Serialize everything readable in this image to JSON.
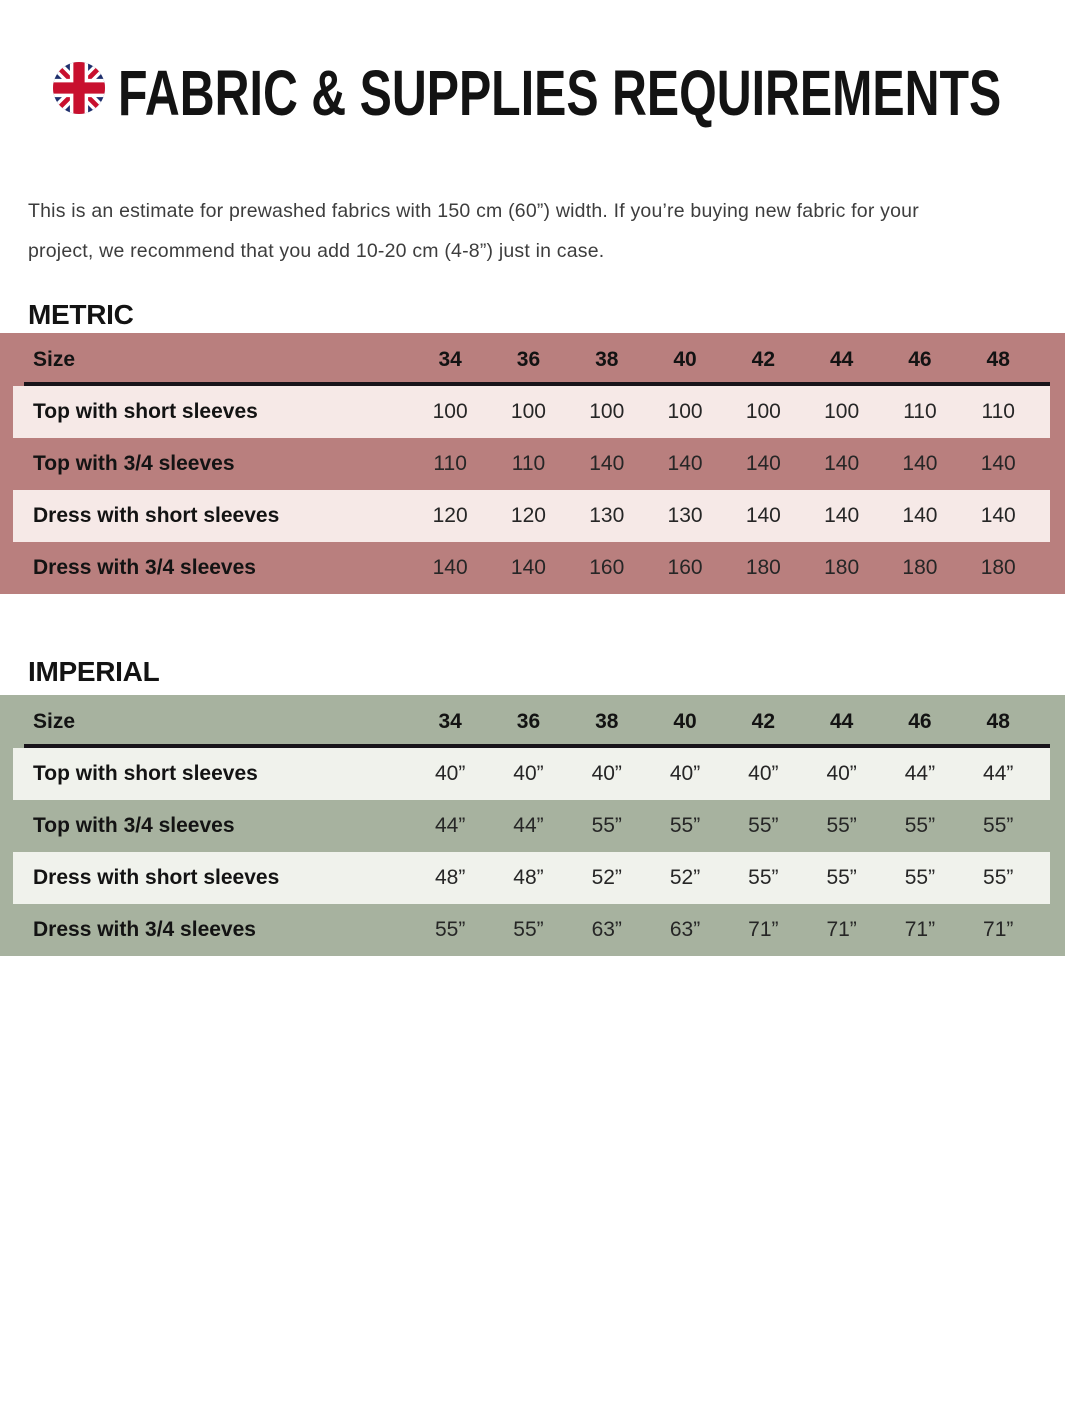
{
  "header": {
    "title": "FABRIC & SUPPLIES REQUIREMENTS",
    "flag_icon": {
      "name": "uk-flag-icon",
      "colors": {
        "blue": "#1f2f6d",
        "red": "#c8102e",
        "white": "#ffffff"
      }
    }
  },
  "intro": {
    "line1": "This is an estimate for prewashed fabrics with 150 cm (60”) width. If you’re buying new fabric for your",
    "line2": "project, we recommend that you add 10-20 cm (4-8”) just in case."
  },
  "theme": {
    "page_bg": "#ffffff",
    "ink": "#131313",
    "intro_ink": "#3d3d3d",
    "cell_ink": "#262626",
    "rule": "#18141a"
  },
  "tables": [
    {
      "id": "metric",
      "heading": "METRIC",
      "colors": {
        "base": "#b97f7e",
        "light": "#f6e9e7"
      },
      "size_label": "Size",
      "sizes": [
        "34",
        "36",
        "38",
        "40",
        "42",
        "44",
        "46",
        "48"
      ],
      "rows": [
        {
          "label": "Top with short sleeves",
          "values": [
            "100",
            "100",
            "100",
            "100",
            "100",
            "100",
            "110",
            "110"
          ]
        },
        {
          "label": "Top with 3/4 sleeves",
          "values": [
            "110",
            "110",
            "140",
            "140",
            "140",
            "140",
            "140",
            "140"
          ]
        },
        {
          "label": "Dress with short sleeves",
          "values": [
            "120",
            "120",
            "130",
            "130",
            "140",
            "140",
            "140",
            "140"
          ]
        },
        {
          "label": "Dress with 3/4 sleeves",
          "values": [
            "140",
            "140",
            "160",
            "160",
            "180",
            "180",
            "180",
            "180"
          ]
        }
      ]
    },
    {
      "id": "imperial",
      "heading": "IMPERIAL",
      "colors": {
        "base": "#a7b29f",
        "light": "#f0f2ec"
      },
      "size_label": "Size",
      "sizes": [
        "34",
        "36",
        "38",
        "40",
        "42",
        "44",
        "46",
        "48"
      ],
      "rows": [
        {
          "label": "Top with short sleeves",
          "values": [
            "40”",
            "40”",
            "40”",
            "40”",
            "40”",
            "40”",
            "44”",
            "44”"
          ]
        },
        {
          "label": "Top with 3/4 sleeves",
          "values": [
            "44”",
            "44”",
            "55”",
            "55”",
            "55”",
            "55”",
            "55”",
            "55”"
          ]
        },
        {
          "label": "Dress with short sleeves",
          "values": [
            "48”",
            "48”",
            "52”",
            "52”",
            "55”",
            "55”",
            "55”",
            "55”"
          ]
        },
        {
          "label": "Dress with 3/4 sleeves",
          "values": [
            "55”",
            "55”",
            "63”",
            "63”",
            "71”",
            "71”",
            "71”",
            "71”"
          ]
        }
      ]
    }
  ]
}
